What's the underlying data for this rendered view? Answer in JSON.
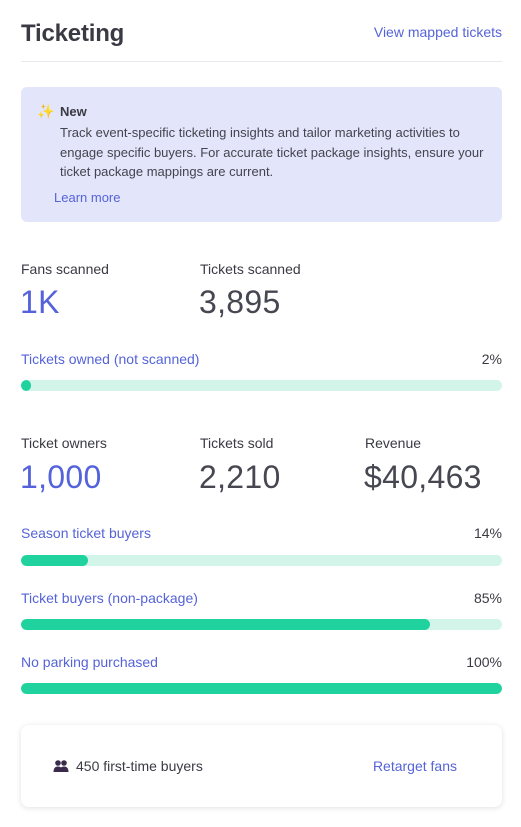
{
  "header": {
    "title": "Ticketing",
    "view_link": "View mapped tickets"
  },
  "banner": {
    "heading": "New",
    "body": "Track event-specific ticketing insights and tailor marketing activities to engage specific buyers. For accurate ticket package insights, ensure your ticket package mappings are current.",
    "learn_more": "Learn more",
    "icon": "sparkles-icon"
  },
  "stats_top": [
    {
      "label": "Fans scanned",
      "value": "1K"
    },
    {
      "label": "Tickets scanned",
      "value": "3,895"
    }
  ],
  "bars_top": [
    {
      "label": "Tickets owned (not scanned)",
      "percent_text": "2%",
      "fraction": 0.02
    }
  ],
  "stats_mid": [
    {
      "label": "Ticket owners",
      "value": "1,000"
    },
    {
      "label": "Tickets sold",
      "value": "2,210"
    },
    {
      "label": "Revenue",
      "value": "$40,463"
    }
  ],
  "bars_mid": [
    {
      "label": "Season ticket buyers",
      "percent_text": "14%",
      "fraction": 0.14
    },
    {
      "label": "Ticket buyers (non-package)",
      "percent_text": "85%",
      "fraction": 0.85
    },
    {
      "label": "No parking purchased",
      "percent_text": "100%",
      "fraction": 1.0
    }
  ],
  "card": {
    "icon": "users-icon",
    "first_time_buyers": "450 first-time buyers",
    "retarget": "Retarget fans"
  },
  "colors": {
    "accent": "#5563d8",
    "bar_fill": "#1fd29e",
    "bar_track": "#d2f4e9",
    "banner_bg": "#e3e5fb"
  }
}
